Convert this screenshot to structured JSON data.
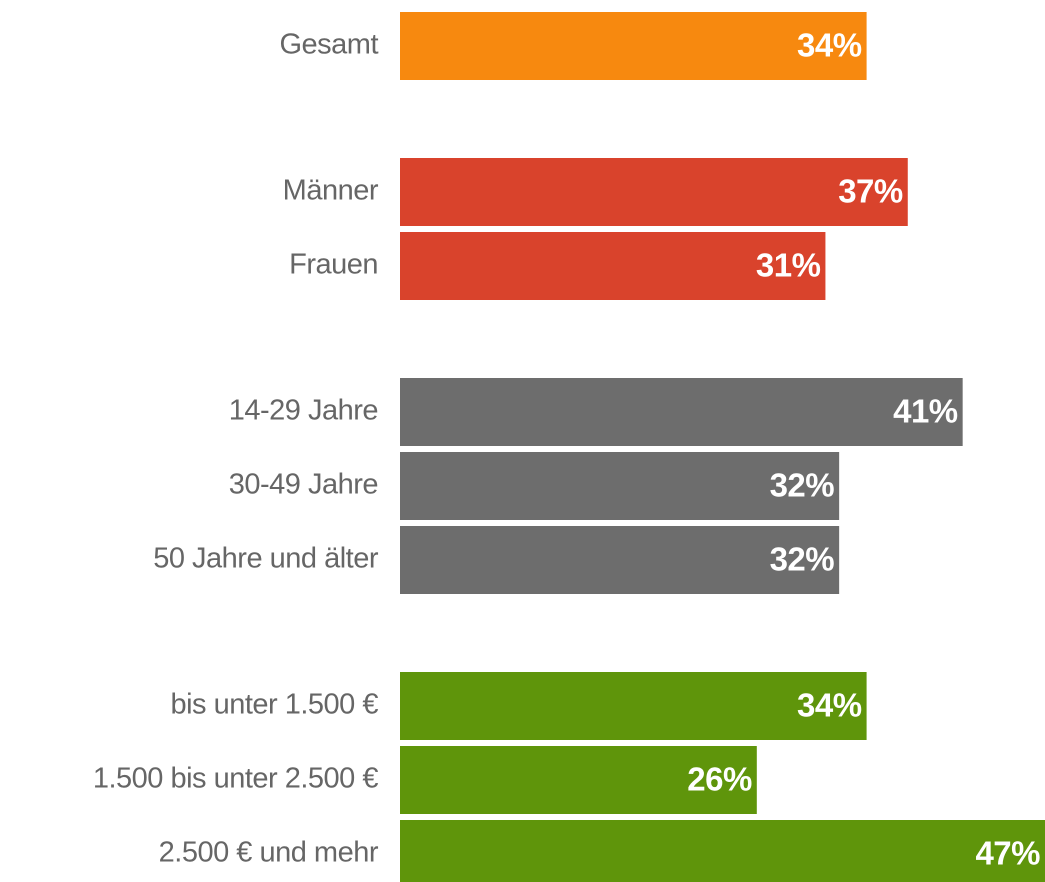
{
  "chart_data": {
    "type": "bar",
    "orientation": "horizontal",
    "categories": [
      "Gesamt",
      "Männer",
      "Frauen",
      "14-29 Jahre",
      "30-49 Jahre",
      "50 Jahre und älter",
      "bis unter 1.500 €",
      "1.500 bis unter 2.500 €",
      "2.500 € und mehr"
    ],
    "values": [
      34,
      37,
      31,
      41,
      32,
      32,
      34,
      26,
      47
    ],
    "value_labels": [
      "34%",
      "37%",
      "31%",
      "41%",
      "32%",
      "32%",
      "34%",
      "26%",
      "47%"
    ],
    "colors": [
      "#f7890f",
      "#d9432c",
      "#d9432c",
      "#6d6d6d",
      "#6d6d6d",
      "#6d6d6d",
      "#5f950b",
      "#5f950b",
      "#5f950b"
    ]
  }
}
